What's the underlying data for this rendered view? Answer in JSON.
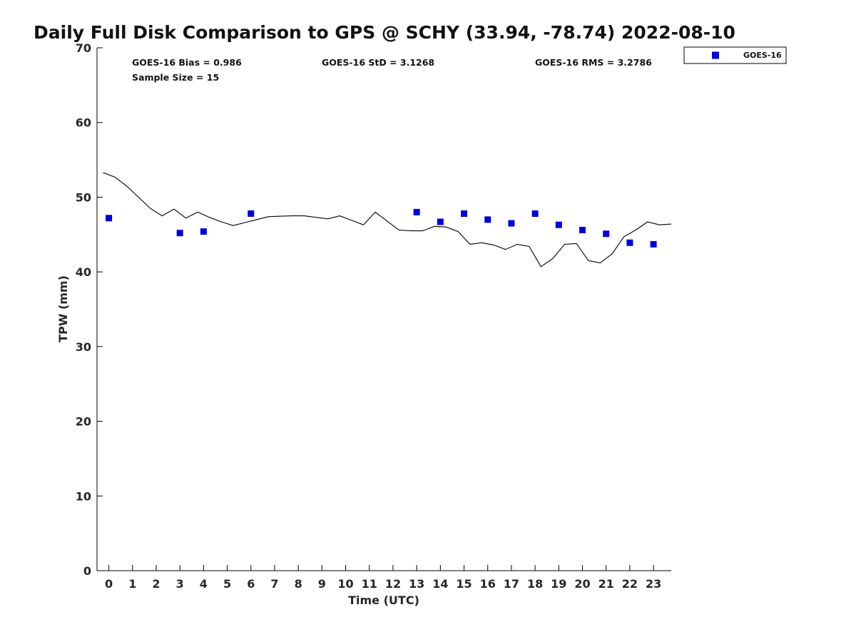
{
  "chart_data": {
    "type": "scatter",
    "title": "Daily Full Disk Comparison to GPS @ SCHY (33.94, -78.74) 2022-08-10",
    "xlabel": "Time (UTC)",
    "ylabel": "TPW (mm)",
    "xlim": [
      -0.5,
      23.75
    ],
    "ylim": [
      0,
      70
    ],
    "x_ticks": [
      0,
      1,
      2,
      3,
      4,
      5,
      6,
      7,
      8,
      9,
      10,
      11,
      12,
      13,
      14,
      15,
      16,
      17,
      18,
      19,
      20,
      21,
      22,
      23
    ],
    "y_ticks": [
      0,
      10,
      20,
      30,
      40,
      50,
      60,
      70
    ],
    "grid": false,
    "legend": {
      "position": "top-right-outside",
      "entries": [
        "GOES-16"
      ]
    },
    "stats": {
      "bias": "GOES-16 Bias = 0.986",
      "std": "GOES-16 StD = 3.1268",
      "rms": "GOES-16 RMS = 3.2786",
      "sample": "Sample Size = 15"
    },
    "series": [
      {
        "name": "GOES-16",
        "kind": "scatter",
        "color": "#0000dd",
        "marker": "square",
        "x": [
          0,
          3,
          4,
          6,
          13,
          14,
          15,
          16,
          17,
          18,
          19,
          20,
          21,
          22,
          23
        ],
        "y": [
          47.2,
          45.2,
          45.4,
          47.8,
          48.0,
          46.7,
          47.8,
          47.0,
          46.5,
          47.8,
          46.3,
          45.6,
          45.1,
          43.9,
          43.7
        ]
      },
      {
        "kind": "line",
        "color": "#000000",
        "x": [
          -0.25,
          0.25,
          0.75,
          1.25,
          1.75,
          2.25,
          2.75,
          3.25,
          3.75,
          4.25,
          4.75,
          5.25,
          5.75,
          6.25,
          6.75,
          7.25,
          7.75,
          8.25,
          8.75,
          9.25,
          9.75,
          10.25,
          10.75,
          11.25,
          11.75,
          12.25,
          12.75,
          13.25,
          13.75,
          14.25,
          14.75,
          15.25,
          15.75,
          16.25,
          16.75,
          17.25,
          17.75,
          18.25,
          18.75,
          19.25,
          19.75,
          20.25,
          20.75,
          21.25,
          21.75,
          22.25,
          22.75,
          23.25,
          23.75
        ],
        "y": [
          53.3,
          52.7,
          51.5,
          50.0,
          48.5,
          47.5,
          48.4,
          47.2,
          48.0,
          47.3,
          46.7,
          46.2,
          46.6,
          47.0,
          47.4,
          47.45,
          47.5,
          47.5,
          47.3,
          47.1,
          47.5,
          46.9,
          46.3,
          48.0,
          46.8,
          45.6,
          45.5,
          45.5,
          46.1,
          46.0,
          45.4,
          43.7,
          43.9,
          43.6,
          43.0,
          43.7,
          43.4,
          40.7,
          41.8,
          43.7,
          43.8,
          41.5,
          41.2,
          42.4,
          44.7,
          45.6,
          46.7,
          46.3,
          46.4
        ]
      }
    ]
  }
}
